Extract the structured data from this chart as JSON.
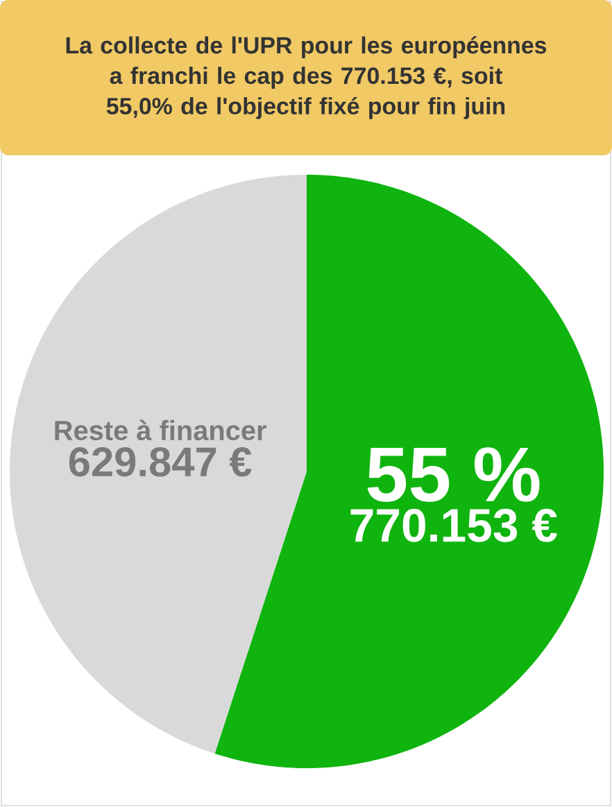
{
  "chart_data": {
    "type": "pie",
    "title": "La collecte de l'UPR pour les européennes a franchi le cap des 770.153 €, soit 55,0% de l'objectif fixé pour fin juin",
    "categories": [
      null,
      "Reste à financer"
    ],
    "values": [
      770153,
      629847
    ],
    "colors": [
      "#0fb40f",
      "#d9d9d9"
    ],
    "value_labels": [
      "770.153 €",
      "629.847 €"
    ],
    "annotations": [
      "55 %"
    ]
  }
}
